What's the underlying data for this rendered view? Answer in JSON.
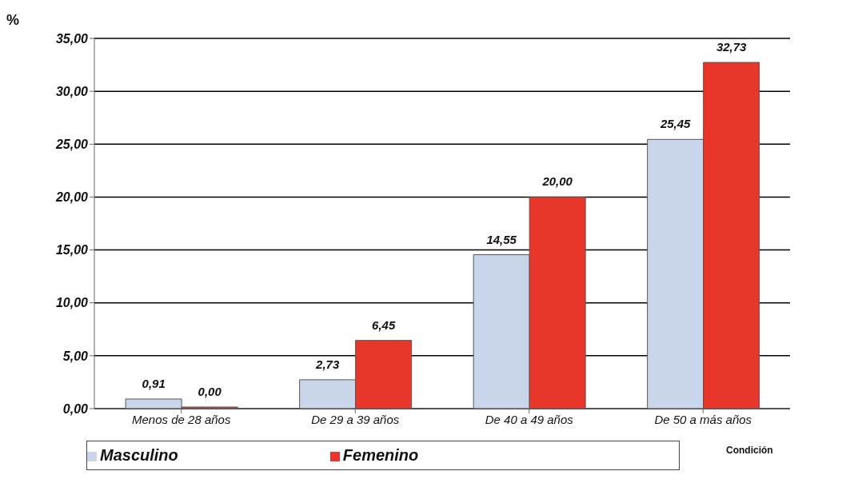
{
  "chart_data": {
    "type": "bar",
    "ylabel": "%",
    "xlabel": "Condición",
    "categories": [
      "Menos de 28 años",
      "De 29 a 39 años",
      "De 40 a 49 años",
      "De 50 a más años"
    ],
    "series": [
      {
        "name": "Masculino",
        "color": "#c9d5ea",
        "values": [
          0.91,
          2.73,
          14.55,
          25.45
        ],
        "value_labels": [
          "0,91",
          "2,73",
          "14,55",
          "25,45"
        ]
      },
      {
        "name": "Femenino",
        "color": "#e8372a",
        "values": [
          0,
          6.45,
          20,
          32.73
        ],
        "value_labels": [
          "0,00",
          "6,45",
          "20,00",
          "32,73"
        ]
      }
    ],
    "ylim": [
      0,
      35
    ],
    "yticks": [
      {
        "value": 0,
        "label": "0,00"
      },
      {
        "value": 5,
        "label": "5,00"
      },
      {
        "value": 10,
        "label": "10,00"
      },
      {
        "value": 15,
        "label": "15,00"
      },
      {
        "value": 20,
        "label": "20,00"
      },
      {
        "value": 25,
        "label": "25,00"
      },
      {
        "value": 30,
        "label": "30,00"
      },
      {
        "value": 35,
        "label": "35,00"
      }
    ],
    "grid": "y",
    "legend": "bottom"
  }
}
